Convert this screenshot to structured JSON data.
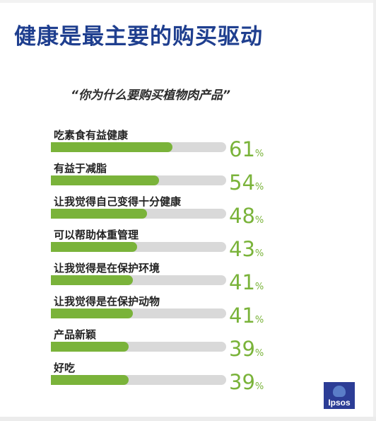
{
  "title": "健康是最主要的购买驱动",
  "chart_data": {
    "type": "bar",
    "orientation": "horizontal",
    "title": "“你为什么要购买植物肉产品”",
    "categories": [
      "吃素食有益健康",
      "有益于减脂",
      "让我觉得自己变得十分健康",
      "可以帮助体重管理",
      "让我觉得是在保护环境",
      "让我觉得是在保护动物",
      "产品新颖",
      "好吃"
    ],
    "values": [
      61,
      54,
      48,
      43,
      41,
      41,
      39,
      39
    ],
    "value_suffix": "%",
    "xlim": [
      0,
      100
    ],
    "bar_color": "#7ab33a",
    "track_color": "#d9d9d9",
    "grid": false
  },
  "colors": {
    "title": "#1f3f8f",
    "accent": "#7ab33a"
  },
  "logo": {
    "text": "Ipsos",
    "color": "#2c3d96"
  }
}
